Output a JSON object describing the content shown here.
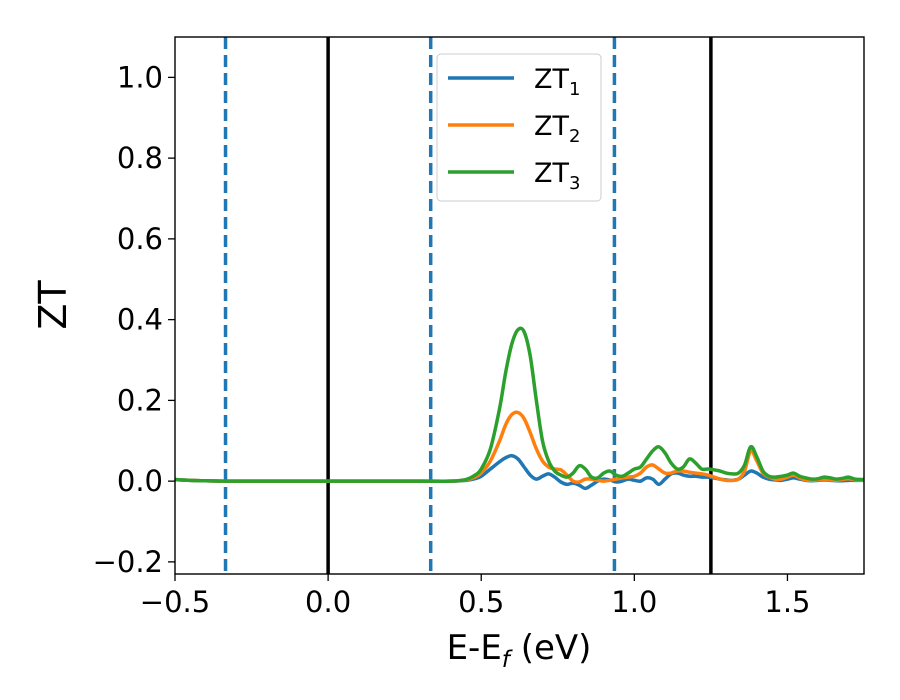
{
  "chart_data": {
    "type": "line",
    "xlabel": "E-E",
    "xlabel_sub": "f",
    "xlabel_unit": " (eV)",
    "ylabel": "ZT",
    "xlim": [
      -0.5,
      1.75
    ],
    "ylim": [
      -0.23,
      1.1
    ],
    "xticks": [
      -0.5,
      0.0,
      0.5,
      1.0,
      1.5
    ],
    "xtick_labels": [
      "−0.5",
      "0.0",
      "0.5",
      "1.0",
      "1.5"
    ],
    "yticks": [
      -0.2,
      0.0,
      0.2,
      0.4,
      0.6,
      0.8,
      1.0
    ],
    "ytick_labels": [
      "−0.2",
      "0.0",
      "0.2",
      "0.4",
      "0.6",
      "0.8",
      "1.0"
    ],
    "grid": false,
    "legend_position": "top-center",
    "vlines_solid": [
      0.0,
      1.25
    ],
    "vlines_dashed": [
      -0.335,
      0.335,
      0.935
    ],
    "series": [
      {
        "name": "ZT",
        "subscript": "1",
        "color": "#1f77b4",
        "x": [
          -0.5,
          -0.45,
          -0.4,
          -0.3,
          0.0,
          0.3,
          0.4,
          0.45,
          0.48,
          0.5,
          0.53,
          0.56,
          0.58,
          0.6,
          0.62,
          0.64,
          0.66,
          0.68,
          0.7,
          0.72,
          0.74,
          0.76,
          0.78,
          0.8,
          0.82,
          0.84,
          0.86,
          0.88,
          0.9,
          0.92,
          0.94,
          0.96,
          0.98,
          1.0,
          1.02,
          1.04,
          1.06,
          1.08,
          1.1,
          1.12,
          1.14,
          1.16,
          1.18,
          1.2,
          1.22,
          1.24,
          1.26,
          1.28,
          1.3,
          1.32,
          1.34,
          1.36,
          1.38,
          1.4,
          1.42,
          1.44,
          1.46,
          1.48,
          1.5,
          1.52,
          1.54,
          1.56,
          1.58,
          1.6,
          1.62,
          1.64,
          1.66,
          1.68,
          1.7,
          1.72,
          1.75
        ],
        "y": [
          0.004,
          0.002,
          0.001,
          0.0,
          0.0,
          0.0,
          0.0,
          0.002,
          0.006,
          0.012,
          0.03,
          0.048,
          0.058,
          0.063,
          0.055,
          0.035,
          0.015,
          0.005,
          0.012,
          0.018,
          0.01,
          -0.002,
          -0.008,
          -0.005,
          -0.01,
          -0.018,
          -0.01,
          0.0,
          0.005,
          0.003,
          -0.002,
          0.0,
          0.005,
          0.002,
          0.0,
          0.008,
          0.005,
          -0.008,
          0.005,
          0.018,
          0.02,
          0.015,
          0.012,
          0.012,
          0.01,
          0.01,
          0.008,
          0.005,
          0.003,
          0.002,
          0.005,
          0.015,
          0.025,
          0.02,
          0.01,
          0.005,
          0.003,
          0.002,
          0.005,
          0.008,
          0.005,
          0.002,
          0.001,
          0.002,
          0.003,
          0.002,
          0.001,
          0.001,
          0.002,
          0.002,
          0.002
        ]
      },
      {
        "name": "ZT",
        "subscript": "2",
        "color": "#ff7f0e",
        "x": [
          -0.5,
          -0.45,
          -0.4,
          -0.3,
          0.0,
          0.3,
          0.4,
          0.45,
          0.48,
          0.5,
          0.53,
          0.56,
          0.58,
          0.6,
          0.62,
          0.64,
          0.66,
          0.68,
          0.7,
          0.72,
          0.74,
          0.76,
          0.78,
          0.8,
          0.82,
          0.84,
          0.86,
          0.88,
          0.9,
          0.92,
          0.94,
          0.96,
          0.98,
          1.0,
          1.02,
          1.04,
          1.06,
          1.08,
          1.1,
          1.12,
          1.14,
          1.16,
          1.18,
          1.2,
          1.22,
          1.24,
          1.26,
          1.28,
          1.3,
          1.32,
          1.34,
          1.36,
          1.38,
          1.4,
          1.42,
          1.44,
          1.46,
          1.48,
          1.5,
          1.52,
          1.54,
          1.56,
          1.58,
          1.6,
          1.62,
          1.64,
          1.66,
          1.68,
          1.7,
          1.72,
          1.75
        ],
        "y": [
          0.004,
          0.002,
          0.001,
          0.0,
          0.0,
          0.0,
          0.0,
          0.003,
          0.01,
          0.02,
          0.05,
          0.1,
          0.14,
          0.165,
          0.17,
          0.155,
          0.12,
          0.08,
          0.05,
          0.035,
          0.03,
          0.028,
          0.015,
          0.0,
          -0.002,
          0.005,
          0.005,
          0.002,
          0.0,
          0.002,
          0.005,
          0.008,
          0.01,
          0.012,
          0.02,
          0.035,
          0.04,
          0.03,
          0.02,
          0.02,
          0.025,
          0.025,
          0.022,
          0.02,
          0.018,
          0.015,
          0.01,
          0.005,
          0.002,
          0.002,
          0.005,
          0.025,
          0.075,
          0.05,
          0.02,
          0.01,
          0.005,
          0.005,
          0.01,
          0.015,
          0.008,
          0.003,
          0.002,
          0.003,
          0.005,
          0.003,
          0.002,
          0.004,
          0.006,
          0.003,
          0.002
        ]
      },
      {
        "name": "ZT",
        "subscript": "3",
        "color": "#2ca02c",
        "x": [
          -0.5,
          -0.45,
          -0.4,
          -0.3,
          0.0,
          0.3,
          0.4,
          0.45,
          0.48,
          0.5,
          0.53,
          0.56,
          0.58,
          0.6,
          0.62,
          0.64,
          0.66,
          0.68,
          0.7,
          0.72,
          0.74,
          0.76,
          0.78,
          0.8,
          0.82,
          0.84,
          0.86,
          0.88,
          0.9,
          0.92,
          0.94,
          0.96,
          0.98,
          1.0,
          1.02,
          1.04,
          1.06,
          1.08,
          1.1,
          1.12,
          1.14,
          1.16,
          1.18,
          1.2,
          1.22,
          1.24,
          1.26,
          1.28,
          1.3,
          1.32,
          1.34,
          1.36,
          1.38,
          1.4,
          1.42,
          1.44,
          1.46,
          1.48,
          1.5,
          1.52,
          1.54,
          1.56,
          1.58,
          1.6,
          1.62,
          1.64,
          1.66,
          1.68,
          1.7,
          1.72,
          1.75
        ],
        "y": [
          0.004,
          0.002,
          0.001,
          0.0,
          0.0,
          0.0,
          0.0,
          0.004,
          0.015,
          0.03,
          0.08,
          0.18,
          0.27,
          0.34,
          0.375,
          0.37,
          0.31,
          0.2,
          0.1,
          0.05,
          0.025,
          0.015,
          0.01,
          0.02,
          0.038,
          0.03,
          0.01,
          0.008,
          0.02,
          0.025,
          0.015,
          0.012,
          0.02,
          0.03,
          0.035,
          0.055,
          0.075,
          0.085,
          0.07,
          0.045,
          0.03,
          0.035,
          0.055,
          0.045,
          0.03,
          0.03,
          0.028,
          0.025,
          0.02,
          0.018,
          0.02,
          0.04,
          0.085,
          0.06,
          0.025,
          0.012,
          0.01,
          0.012,
          0.015,
          0.02,
          0.012,
          0.008,
          0.005,
          0.006,
          0.01,
          0.008,
          0.005,
          0.007,
          0.01,
          0.005,
          0.004
        ]
      }
    ]
  }
}
